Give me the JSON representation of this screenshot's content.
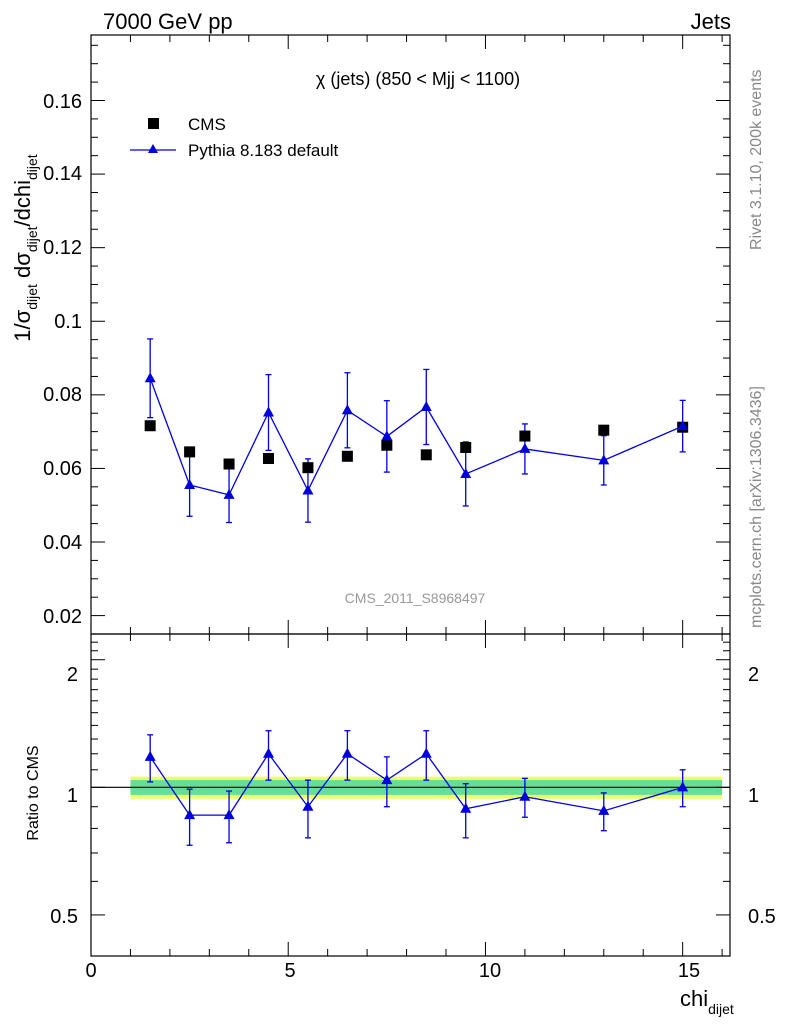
{
  "header": {
    "left": "7000 GeV pp",
    "right": "Jets"
  },
  "side_text": {
    "top": "Rivet 3.1.10,  200k events",
    "bottom": "mcplots.cern.ch [arXiv:1306.3436]"
  },
  "colors": {
    "mc": "#0000dd",
    "data": "#000000",
    "band_inner": "#66dd99",
    "band_outer": "#eeff66"
  },
  "chart_data": [
    {
      "type": "scatter",
      "title": "χ (jets) (850 < Mjj < 1100)",
      "ylabel": "1/σ_dijet dσ_dijet/dchi_dijet",
      "xlabel": "chi_dijet",
      "watermark": "CMS_2011_S8968497",
      "xlim": [
        0,
        16.2
      ],
      "ylim": [
        0.015,
        0.1778
      ],
      "y_ticks": [
        "0.02",
        "0.04",
        "0.06",
        "0.08",
        "0.1",
        "0.12",
        "0.14",
        "0.16"
      ],
      "x_ticks": [
        "0",
        "5",
        "10",
        "15"
      ],
      "legend": [
        "CMS",
        "Pythia 8.183 default"
      ],
      "x": [
        1.5,
        2.5,
        3.5,
        4.5,
        5.5,
        6.5,
        7.5,
        8.5,
        9.5,
        11,
        13,
        15
      ],
      "series": [
        {
          "name": "CMS",
          "values": [
            0.0716,
            0.0645,
            0.0612,
            0.0627,
            0.0602,
            0.0633,
            0.0663,
            0.0637,
            0.0657,
            0.0688,
            0.0704,
            0.0712
          ]
        },
        {
          "name": "Pythia 8.183 default",
          "values": [
            0.0845,
            0.0555,
            0.0528,
            0.0752,
            0.054,
            0.0758,
            0.0687,
            0.0767,
            0.0585,
            0.0653,
            0.0622,
            0.0715
          ],
          "err_up": [
            0.0107,
            0.0085,
            0.0075,
            0.0103,
            0.0086,
            0.0102,
            0.0097,
            0.0102,
            0.0087,
            0.0068,
            0.0067,
            0.007
          ],
          "err_down": [
            0.0107,
            0.0085,
            0.0075,
            0.0103,
            0.0086,
            0.0102,
            0.0097,
            0.0102,
            0.0087,
            0.0068,
            0.0067,
            0.007
          ]
        }
      ]
    },
    {
      "type": "scatter",
      "ylabel": "Ratio to CMS",
      "xlabel": "chi_dijet",
      "xlim": [
        0,
        16.2
      ],
      "ylim": [
        0.4,
        2.3
      ],
      "y_scale": "log",
      "y_ticks_left": [
        "0.5",
        "1",
        "2"
      ],
      "y_ticks_right": [
        "0.5",
        "1",
        "2"
      ],
      "x": [
        1.5,
        2.5,
        3.5,
        4.5,
        5.5,
        6.5,
        7.5,
        8.5,
        9.5,
        11,
        13,
        15
      ],
      "band_range": [
        1,
        16
      ],
      "band_inner": 0.04,
      "band_outer": 0.06,
      "series": [
        {
          "name": "Pythia 8.183 default",
          "values": [
            1.18,
            0.86,
            0.86,
            1.2,
            0.9,
            1.2,
            1.04,
            1.2,
            0.89,
            0.95,
            0.88,
            1.0
          ],
          "err_up": [
            0.15,
            0.13,
            0.12,
            0.16,
            0.14,
            0.16,
            0.14,
            0.16,
            0.13,
            0.1,
            0.09,
            0.1
          ],
          "err_down": [
            0.15,
            0.13,
            0.12,
            0.16,
            0.14,
            0.16,
            0.14,
            0.16,
            0.13,
            0.1,
            0.09,
            0.1
          ]
        }
      ]
    }
  ]
}
